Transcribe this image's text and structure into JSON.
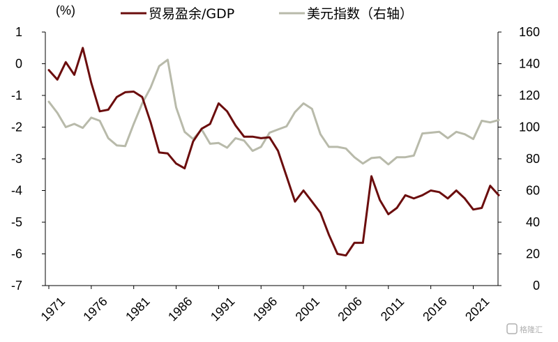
{
  "chart_data": {
    "type": "line",
    "unit_label": "(%)",
    "x": [
      1971,
      1972,
      1973,
      1974,
      1975,
      1976,
      1977,
      1978,
      1979,
      1980,
      1981,
      1982,
      1983,
      1984,
      1985,
      1986,
      1987,
      1988,
      1989,
      1990,
      1991,
      1992,
      1993,
      1994,
      1995,
      1996,
      1997,
      1998,
      1999,
      2000,
      2001,
      2002,
      2003,
      2004,
      2005,
      2006,
      2007,
      2008,
      2009,
      2010,
      2011,
      2012,
      2013,
      2014,
      2015,
      2016,
      2017,
      2018,
      2019,
      2020,
      2021,
      2022,
      2023,
      2024
    ],
    "x_tick_labels": [
      "1971",
      "1976",
      "1981",
      "1986",
      "1991",
      "1996",
      "2001",
      "2006",
      "2011",
      "2016",
      "2021"
    ],
    "left_axis": {
      "min": -7,
      "max": 1,
      "ticks": [
        "1",
        "0",
        "-1",
        "-2",
        "-3",
        "-4",
        "-5",
        "-6",
        "-7"
      ]
    },
    "right_axis": {
      "min": 0,
      "max": 160,
      "ticks": [
        "160",
        "140",
        "120",
        "100",
        "80",
        "60",
        "40",
        "20",
        "0"
      ]
    },
    "series": [
      {
        "name": "贸易盈余/GDP",
        "axis": "left",
        "color": "#6b0d0d",
        "values": [
          -0.2,
          -0.5,
          0.05,
          -0.35,
          0.5,
          -0.6,
          -1.5,
          -1.45,
          -1.05,
          -0.9,
          -0.88,
          -1.05,
          -1.85,
          -2.8,
          -2.83,
          -3.15,
          -3.3,
          -2.45,
          -2.05,
          -1.9,
          -1.25,
          -1.5,
          -1.95,
          -2.3,
          -2.3,
          -2.35,
          -2.32,
          -2.75,
          -3.55,
          -4.35,
          -4.0,
          -4.35,
          -4.7,
          -5.4,
          -6.0,
          -6.05,
          -5.65,
          -5.65,
          -3.55,
          -4.3,
          -4.75,
          -4.55,
          -4.15,
          -4.25,
          -4.15,
          -4.0,
          -4.05,
          -4.25,
          -4.0,
          -4.25,
          -4.6,
          -4.55,
          -3.85,
          -4.15
        ]
      },
      {
        "name": "美元指数（右轴）",
        "axis": "right",
        "color": "#b8baaa",
        "values": [
          116,
          109,
          100,
          102,
          99.5,
          106,
          104,
          93,
          88.5,
          88,
          102,
          115,
          125,
          138.5,
          142.5,
          112.5,
          97,
          92.5,
          98.5,
          89.5,
          90,
          87,
          93,
          91.5,
          85,
          87.5,
          96.5,
          98.5,
          100.5,
          109.5,
          115,
          111.5,
          95.5,
          87.5,
          87.5,
          86.5,
          81,
          77,
          80.5,
          81,
          76.5,
          81,
          81,
          82,
          96,
          96.5,
          97,
          93,
          97,
          95.5,
          92.5,
          104,
          103,
          104.5
        ]
      }
    ],
    "watermark": "格隆汇"
  }
}
